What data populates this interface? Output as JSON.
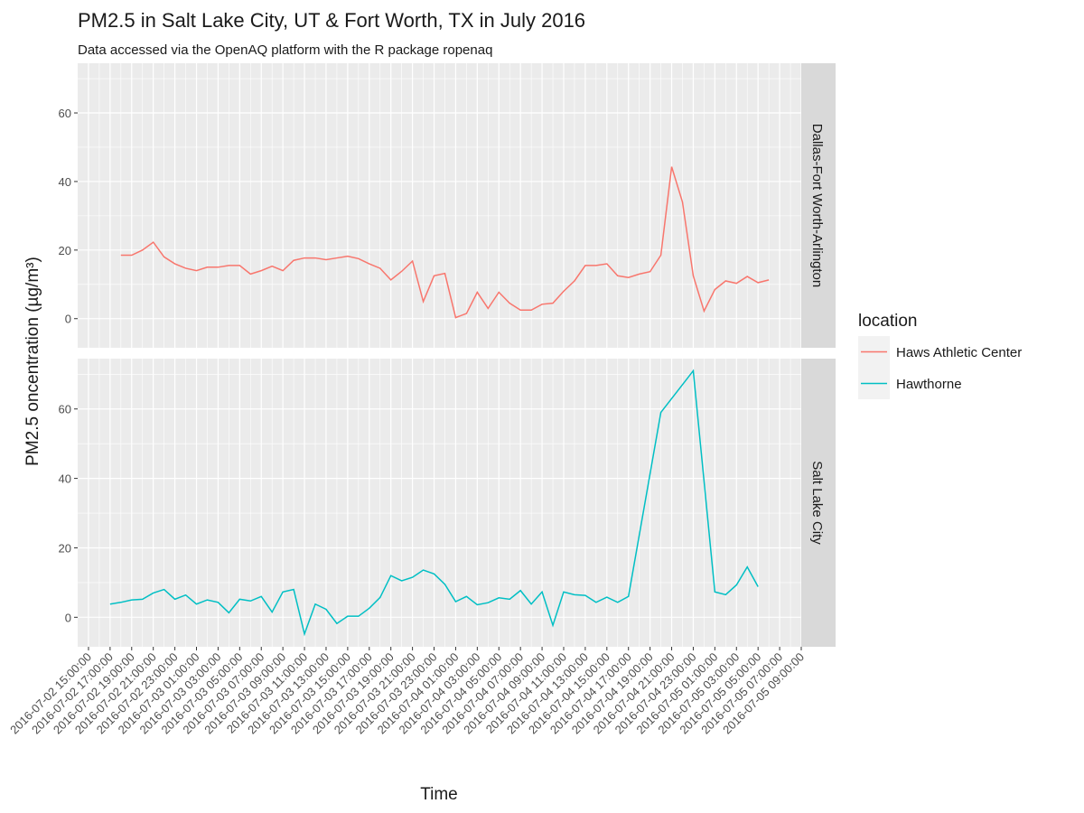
{
  "chart_data": {
    "type": "line",
    "title": "PM2.5 in Salt Lake City, UT & Fort Worth, TX in July 2016",
    "subtitle": "Data accessed via the OpenAQ platform with the R package ropenaq",
    "xlabel": "Time",
    "ylabel": "PM2.5 oncentration (µg/m³)",
    "legend_title": "location",
    "facets": [
      "Dallas-Fort Worth-Arlington",
      "Salt Lake City"
    ],
    "grid": true,
    "xlim": [
      "2016-07-02 14:00:00",
      "2016-07-05 09:00:00"
    ],
    "xticks": [
      "2016-07-02 15:00:00",
      "2016-07-02 17:00:00",
      "2016-07-02 19:00:00",
      "2016-07-02 21:00:00",
      "2016-07-02 23:00:00",
      "2016-07-03 01:00:00",
      "2016-07-03 03:00:00",
      "2016-07-03 05:00:00",
      "2016-07-03 07:00:00",
      "2016-07-03 09:00:00",
      "2016-07-03 11:00:00",
      "2016-07-03 13:00:00",
      "2016-07-03 15:00:00",
      "2016-07-03 17:00:00",
      "2016-07-03 19:00:00",
      "2016-07-03 21:00:00",
      "2016-07-03 23:00:00",
      "2016-07-04 01:00:00",
      "2016-07-04 03:00:00",
      "2016-07-04 05:00:00",
      "2016-07-04 07:00:00",
      "2016-07-04 09:00:00",
      "2016-07-04 11:00:00",
      "2016-07-04 13:00:00",
      "2016-07-04 15:00:00",
      "2016-07-04 17:00:00",
      "2016-07-04 19:00:00",
      "2016-07-04 21:00:00",
      "2016-07-04 23:00:00",
      "2016-07-05 01:00:00",
      "2016-07-05 03:00:00",
      "2016-07-05 05:00:00",
      "2016-07-05 07:00:00",
      "2016-07-05 09:00:00"
    ],
    "ylim": [
      -8.5,
      74.5
    ],
    "yticks": [
      0,
      20,
      40,
      60
    ],
    "series": [
      {
        "name": "Haws Athletic Center",
        "color": "#F8766D",
        "facet": 0,
        "x": [
          "2016-07-02 18:00:00",
          "2016-07-02 19:00:00",
          "2016-07-02 20:00:00",
          "2016-07-02 21:00:00",
          "2016-07-02 22:00:00",
          "2016-07-02 23:00:00",
          "2016-07-03 00:00:00",
          "2016-07-03 01:00:00",
          "2016-07-03 02:00:00",
          "2016-07-03 03:00:00",
          "2016-07-03 04:00:00",
          "2016-07-03 05:00:00",
          "2016-07-03 06:00:00",
          "2016-07-03 07:00:00",
          "2016-07-03 08:00:00",
          "2016-07-03 09:00:00",
          "2016-07-03 10:00:00",
          "2016-07-03 11:00:00",
          "2016-07-03 12:00:00",
          "2016-07-03 13:00:00",
          "2016-07-03 14:00:00",
          "2016-07-03 15:00:00",
          "2016-07-03 16:00:00",
          "2016-07-03 17:00:00",
          "2016-07-03 18:00:00",
          "2016-07-03 19:00:00",
          "2016-07-03 20:00:00",
          "2016-07-03 21:00:00",
          "2016-07-03 22:00:00",
          "2016-07-03 23:00:00",
          "2016-07-04 00:00:00",
          "2016-07-04 01:00:00",
          "2016-07-04 02:00:00",
          "2016-07-04 03:00:00",
          "2016-07-04 04:00:00",
          "2016-07-04 05:00:00",
          "2016-07-04 06:00:00",
          "2016-07-04 07:00:00",
          "2016-07-04 08:00:00",
          "2016-07-04 09:00:00",
          "2016-07-04 10:00:00",
          "2016-07-04 11:00:00",
          "2016-07-04 12:00:00",
          "2016-07-04 13:00:00",
          "2016-07-04 14:00:00",
          "2016-07-04 15:00:00",
          "2016-07-04 16:00:00",
          "2016-07-04 17:00:00",
          "2016-07-04 18:00:00",
          "2016-07-04 19:00:00",
          "2016-07-04 20:00:00",
          "2016-07-04 21:00:00",
          "2016-07-04 22:00:00",
          "2016-07-04 23:00:00",
          "2016-07-05 00:00:00",
          "2016-07-05 01:00:00",
          "2016-07-05 02:00:00",
          "2016-07-05 03:00:00",
          "2016-07-05 04:00:00",
          "2016-07-05 05:00:00",
          "2016-07-05 06:00:00"
        ],
        "values": [
          18.5,
          18.5,
          20,
          22.3,
          18,
          16,
          14.7,
          14,
          15,
          15,
          15.5,
          15.5,
          13,
          14,
          15.3,
          14,
          17,
          17.7,
          17.7,
          17.2,
          17.7,
          18.2,
          17.5,
          16,
          14.7,
          11.3,
          13.8,
          16.8,
          5,
          12.5,
          13.2,
          0.3,
          1.5,
          7.7,
          3,
          7.7,
          4.5,
          2.5,
          2.5,
          4.2,
          4.5,
          8,
          11,
          15.5,
          15.5,
          16,
          12.5,
          12,
          13,
          13.7,
          18.5,
          44.3,
          34,
          12.5,
          2.2,
          8.5,
          11,
          10.3,
          12.3,
          10.5,
          11.3
        ]
      },
      {
        "name": "Hawthorne",
        "color": "#00BFC4",
        "facet": 1,
        "x": [
          "2016-07-02 17:00:00",
          "2016-07-02 18:00:00",
          "2016-07-02 19:00:00",
          "2016-07-02 20:00:00",
          "2016-07-02 21:00:00",
          "2016-07-02 22:00:00",
          "2016-07-02 23:00:00",
          "2016-07-03 00:00:00",
          "2016-07-03 01:00:00",
          "2016-07-03 02:00:00",
          "2016-07-03 03:00:00",
          "2016-07-03 04:00:00",
          "2016-07-03 05:00:00",
          "2016-07-03 06:00:00",
          "2016-07-03 07:00:00",
          "2016-07-03 08:00:00",
          "2016-07-03 09:00:00",
          "2016-07-03 10:00:00",
          "2016-07-03 11:00:00",
          "2016-07-03 12:00:00",
          "2016-07-03 13:00:00",
          "2016-07-03 14:00:00",
          "2016-07-03 15:00:00",
          "2016-07-03 16:00:00",
          "2016-07-03 17:00:00",
          "2016-07-03 18:00:00",
          "2016-07-03 19:00:00",
          "2016-07-03 20:00:00",
          "2016-07-03 21:00:00",
          "2016-07-03 22:00:00",
          "2016-07-03 23:00:00",
          "2016-07-04 00:00:00",
          "2016-07-04 01:00:00",
          "2016-07-04 02:00:00",
          "2016-07-04 03:00:00",
          "2016-07-04 04:00:00",
          "2016-07-04 05:00:00",
          "2016-07-04 06:00:00",
          "2016-07-04 07:00:00",
          "2016-07-04 08:00:00",
          "2016-07-04 09:00:00",
          "2016-07-04 10:00:00",
          "2016-07-04 11:00:00",
          "2016-07-04 12:00:00",
          "2016-07-04 13:00:00",
          "2016-07-04 14:00:00",
          "2016-07-04 15:00:00",
          "2016-07-04 16:00:00",
          "2016-07-04 17:00:00",
          "2016-07-04 20:00:00",
          "2016-07-04 23:00:00",
          "2016-07-05 01:00:00",
          "2016-07-05 02:00:00",
          "2016-07-05 03:00:00",
          "2016-07-05 04:00:00",
          "2016-07-05 05:00:00"
        ],
        "values": [
          3.8,
          4.3,
          5,
          5.2,
          7,
          8,
          5.2,
          6.4,
          3.8,
          5,
          4.3,
          1.3,
          5.2,
          4.7,
          6,
          1.5,
          7.3,
          8,
          -4.8,
          3.8,
          2.3,
          -1.8,
          0.3,
          0.3,
          2.6,
          5.7,
          12,
          10.5,
          11.5,
          13.6,
          12.5,
          9.5,
          4.5,
          6,
          3.6,
          4.2,
          5.6,
          5.2,
          7.7,
          3.8,
          7.3,
          -2.3,
          7.3,
          6.5,
          6.3,
          4.3,
          5.8,
          4.3,
          6,
          59,
          71,
          7.3,
          6.5,
          9.3,
          14.5,
          8.8
        ]
      }
    ]
  }
}
